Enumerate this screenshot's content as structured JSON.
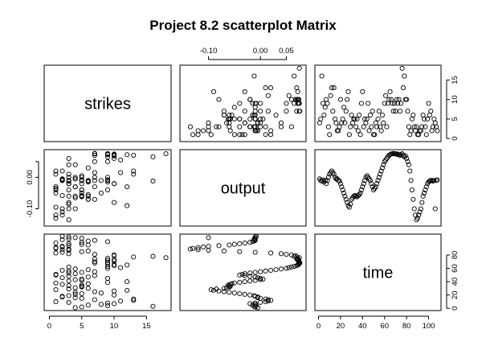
{
  "chart_data": {
    "type": "scatter",
    "title": "Project 8.2 scatterplot Matrix",
    "variables": [
      "strikes",
      "output",
      "time"
    ],
    "axes": {
      "strikes": {
        "ticks": [
          0,
          5,
          10,
          15
        ],
        "tick_labels": [
          "0",
          "5",
          "10",
          "15"
        ],
        "range": [
          -0.8,
          18.8
        ]
      },
      "output": {
        "ticks": [
          -0.1,
          0.0,
          0.05
        ],
        "tick_labels": [
          "-0.10",
          "0.00",
          "0.05"
        ],
        "range": [
          -0.155,
          0.088
        ]
      },
      "time": {
        "ticks": [
          0,
          20,
          40,
          60,
          80,
          100
        ],
        "tick_labels": [
          "0",
          "20",
          "40",
          "60",
          "80",
          "100"
        ],
        "range": [
          -3.3,
          111.3
        ]
      }
    },
    "tick_label_sides": {
      "top": [
        "output"
      ],
      "right": [
        "strikes",
        "time"
      ],
      "bottom": [
        "strikes",
        "time"
      ],
      "left": [
        "output"
      ]
    },
    "time_tick_labels_right": [
      "0",
      "20",
      "40",
      "60",
      "80"
    ],
    "strikes_tick_labels_right": [
      "0",
      "5",
      "10",
      "15"
    ],
    "observations": [
      {
        "time": 1,
        "output": -0.005,
        "strikes": 4
      },
      {
        "time": 2,
        "output": -0.01,
        "strikes": 5
      },
      {
        "time": 3,
        "output": -0.012,
        "strikes": 16
      },
      {
        "time": 4,
        "output": -0.008,
        "strikes": 9
      },
      {
        "time": 5,
        "output": -0.015,
        "strikes": 6
      },
      {
        "time": 6,
        "output": -0.01,
        "strikes": 8
      },
      {
        "time": 7,
        "output": -0.02,
        "strikes": 10
      },
      {
        "time": 8,
        "output": -0.01,
        "strikes": 9
      },
      {
        "time": 9,
        "output": 0.0,
        "strikes": 3
      },
      {
        "time": 10,
        "output": 0.01,
        "strikes": 1
      },
      {
        "time": 11,
        "output": 0.015,
        "strikes": 11
      },
      {
        "time": 12,
        "output": 0.02,
        "strikes": 13
      },
      {
        "time": 13,
        "output": 0.015,
        "strikes": 7
      },
      {
        "time": 14,
        "output": 0.01,
        "strikes": 13
      },
      {
        "time": 15,
        "output": 0.0,
        "strikes": 5
      },
      {
        "time": 16,
        "output": -0.005,
        "strikes": 4
      },
      {
        "time": 17,
        "output": -0.005,
        "strikes": 2
      },
      {
        "time": 18,
        "output": -0.01,
        "strikes": 2
      },
      {
        "time": 19,
        "output": -0.012,
        "strikes": 3
      },
      {
        "time": 20,
        "output": -0.02,
        "strikes": 10
      },
      {
        "time": 21,
        "output": -0.03,
        "strikes": 4
      },
      {
        "time": 22,
        "output": -0.04,
        "strikes": 5
      },
      {
        "time": 23,
        "output": -0.05,
        "strikes": 8
      },
      {
        "time": 24,
        "output": -0.06,
        "strikes": 4
      },
      {
        "time": 25,
        "output": -0.07,
        "strikes": 7
      },
      {
        "time": 26,
        "output": -0.08,
        "strikes": 10
      },
      {
        "time": 27,
        "output": -0.09,
        "strikes": 12
      },
      {
        "time": 28,
        "output": -0.095,
        "strikes": 1
      },
      {
        "time": 29,
        "output": -0.085,
        "strikes": 3
      },
      {
        "time": 30,
        "output": -0.07,
        "strikes": 6
      },
      {
        "time": 31,
        "output": -0.065,
        "strikes": 4
      },
      {
        "time": 32,
        "output": -0.06,
        "strikes": 5
      },
      {
        "time": 33,
        "output": -0.058,
        "strikes": 5
      },
      {
        "time": 34,
        "output": -0.06,
        "strikes": 3
      },
      {
        "time": 35,
        "output": -0.062,
        "strikes": 5
      },
      {
        "time": 36,
        "output": -0.058,
        "strikes": 2
      },
      {
        "time": 37,
        "output": -0.055,
        "strikes": 6
      },
      {
        "time": 38,
        "output": -0.05,
        "strikes": 1
      },
      {
        "time": 39,
        "output": -0.04,
        "strikes": 9
      },
      {
        "time": 40,
        "output": -0.03,
        "strikes": 12
      },
      {
        "time": 41,
        "output": -0.02,
        "strikes": 3
      },
      {
        "time": 42,
        "output": -0.01,
        "strikes": 5
      },
      {
        "time": 43,
        "output": 0.0,
        "strikes": 4
      },
      {
        "time": 44,
        "output": 0.005,
        "strikes": 5
      },
      {
        "time": 45,
        "output": 0.0,
        "strikes": 9
      },
      {
        "time": 46,
        "output": -0.005,
        "strikes": 2
      },
      {
        "time": 47,
        "output": -0.01,
        "strikes": 6
      },
      {
        "time": 48,
        "output": -0.02,
        "strikes": 3
      },
      {
        "time": 49,
        "output": -0.03,
        "strikes": 7
      },
      {
        "time": 50,
        "output": -0.04,
        "strikes": 1
      },
      {
        "time": 51,
        "output": -0.035,
        "strikes": 1
      },
      {
        "time": 52,
        "output": -0.03,
        "strikes": 4
      },
      {
        "time": 53,
        "output": -0.02,
        "strikes": 3
      },
      {
        "time": 54,
        "output": -0.01,
        "strikes": 5
      },
      {
        "time": 55,
        "output": 0.0,
        "strikes": 7
      },
      {
        "time": 56,
        "output": 0.01,
        "strikes": 3
      },
      {
        "time": 57,
        "output": 0.02,
        "strikes": 2
      },
      {
        "time": 58,
        "output": 0.03,
        "strikes": 6
      },
      {
        "time": 59,
        "output": 0.04,
        "strikes": 4
      },
      {
        "time": 60,
        "output": 0.05,
        "strikes": 9
      },
      {
        "time": 61,
        "output": 0.055,
        "strikes": 11
      },
      {
        "time": 62,
        "output": 0.06,
        "strikes": 3
      },
      {
        "time": 63,
        "output": 0.065,
        "strikes": 9
      },
      {
        "time": 64,
        "output": 0.07,
        "strikes": 10
      },
      {
        "time": 65,
        "output": 0.072,
        "strikes": 12
      },
      {
        "time": 66,
        "output": 0.074,
        "strikes": 10
      },
      {
        "time": 67,
        "output": 0.075,
        "strikes": 9
      },
      {
        "time": 68,
        "output": 0.076,
        "strikes": 7
      },
      {
        "time": 69,
        "output": 0.075,
        "strikes": 9
      },
      {
        "time": 70,
        "output": 0.075,
        "strikes": 7
      },
      {
        "time": 71,
        "output": 0.073,
        "strikes": 10
      },
      {
        "time": 72,
        "output": 0.074,
        "strikes": 9
      },
      {
        "time": 73,
        "output": 0.072,
        "strikes": 10
      },
      {
        "time": 74,
        "output": 0.07,
        "strikes": 7
      },
      {
        "time": 75,
        "output": 0.072,
        "strikes": 9
      },
      {
        "time": 76,
        "output": 0.075,
        "strikes": 18
      },
      {
        "time": 77,
        "output": 0.07,
        "strikes": 13
      },
      {
        "time": 78,
        "output": 0.065,
        "strikes": 16
      },
      {
        "time": 79,
        "output": 0.068,
        "strikes": 10
      },
      {
        "time": 80,
        "output": 0.06,
        "strikes": 10
      },
      {
        "time": 81,
        "output": 0.05,
        "strikes": 7
      },
      {
        "time": 82,
        "output": 0.04,
        "strikes": 3
      },
      {
        "time": 83,
        "output": 0.02,
        "strikes": 1
      },
      {
        "time": 84,
        "output": -0.01,
        "strikes": 2
      },
      {
        "time": 85,
        "output": -0.04,
        "strikes": 5
      },
      {
        "time": 86,
        "output": -0.07,
        "strikes": 6
      },
      {
        "time": 87,
        "output": -0.1,
        "strikes": 3
      },
      {
        "time": 88,
        "output": -0.12,
        "strikes": 2
      },
      {
        "time": 89,
        "output": -0.135,
        "strikes": 3
      },
      {
        "time": 90,
        "output": -0.13,
        "strikes": 1
      },
      {
        "time": 91,
        "output": -0.12,
        "strikes": 1
      },
      {
        "time": 92,
        "output": -0.11,
        "strikes": 2
      },
      {
        "time": 93,
        "output": -0.1,
        "strikes": 2
      },
      {
        "time": 94,
        "output": -0.08,
        "strikes": 3
      },
      {
        "time": 95,
        "output": -0.06,
        "strikes": 6
      },
      {
        "time": 96,
        "output": -0.05,
        "strikes": 5
      },
      {
        "time": 97,
        "output": -0.04,
        "strikes": 3
      },
      {
        "time": 98,
        "output": -0.03,
        "strikes": 1
      },
      {
        "time": 99,
        "output": -0.02,
        "strikes": 5
      },
      {
        "time": 100,
        "output": -0.015,
        "strikes": 9
      },
      {
        "time": 101,
        "output": -0.012,
        "strikes": 6
      },
      {
        "time": 102,
        "output": -0.01,
        "strikes": 7
      },
      {
        "time": 103,
        "output": -0.01,
        "strikes": 2
      },
      {
        "time": 104,
        "output": -0.012,
        "strikes": 3
      },
      {
        "time": 105,
        "output": -0.01,
        "strikes": 5
      },
      {
        "time": 106,
        "output": -0.1,
        "strikes": 4
      },
      {
        "time": 107,
        "output": -0.01,
        "strikes": 3
      },
      {
        "time": 108,
        "output": -0.008,
        "strikes": 2
      }
    ],
    "grid": false,
    "legend": "none"
  }
}
